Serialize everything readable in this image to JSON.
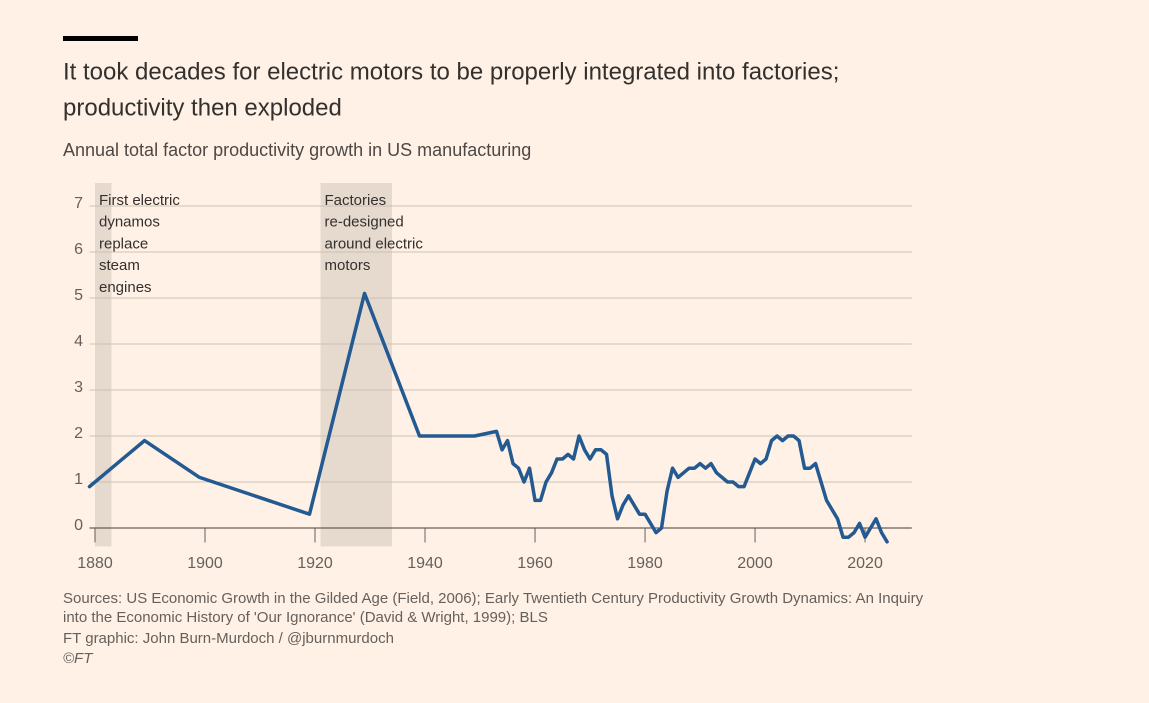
{
  "chart_data": {
    "type": "line",
    "title": [
      "It took decades for electric motors to be properly integrated into factories;",
      "productivity then exploded"
    ],
    "subtitle": "Annual total factor productivity growth in US manufacturing",
    "color": "#235a91",
    "x": [
      1879,
      1889,
      1899,
      1919,
      1929,
      1939,
      1949,
      1953,
      1954,
      1955,
      1956,
      1957,
      1958,
      1959,
      1960,
      1961,
      1962,
      1963,
      1964,
      1965,
      1966,
      1967,
      1968,
      1969,
      1970,
      1971,
      1972,
      1973,
      1974,
      1975,
      1976,
      1977,
      1978,
      1979,
      1980,
      1981,
      1982,
      1983,
      1984,
      1985,
      1986,
      1987,
      1988,
      1989,
      1990,
      1991,
      1992,
      1993,
      1994,
      1995,
      1996,
      1997,
      1998,
      1999,
      2000,
      2001,
      2002,
      2003,
      2004,
      2005,
      2006,
      2007,
      2008,
      2009,
      2010,
      2011,
      2012,
      2013,
      2014,
      2015,
      2016,
      2017,
      2018,
      2019,
      2020,
      2021,
      2022,
      2023,
      2024
    ],
    "values": [
      0.9,
      1.9,
      1.1,
      0.3,
      5.1,
      2.0,
      2.0,
      2.1,
      1.7,
      1.9,
      1.4,
      1.3,
      1.0,
      1.3,
      0.6,
      0.6,
      1.0,
      1.2,
      1.5,
      1.5,
      1.6,
      1.5,
      2.0,
      1.7,
      1.5,
      1.7,
      1.7,
      1.6,
      0.7,
      0.2,
      0.5,
      0.7,
      0.5,
      0.3,
      0.3,
      0.1,
      -0.1,
      0.0,
      0.8,
      1.3,
      1.1,
      1.2,
      1.3,
      1.3,
      1.4,
      1.3,
      1.4,
      1.2,
      1.1,
      1.0,
      1.0,
      0.9,
      0.9,
      1.2,
      1.5,
      1.4,
      1.5,
      1.9,
      2.0,
      1.9,
      2.0,
      2.0,
      1.9,
      1.3,
      1.3,
      1.4,
      1.0,
      0.6,
      0.4,
      0.2,
      -0.2,
      -0.2,
      -0.1,
      0.1,
      -0.2,
      0.0,
      0.2,
      -0.1,
      -0.3
    ],
    "xlim": [
      1879,
      2028.5
    ],
    "ylim": [
      -0.4,
      7.2
    ],
    "xticks": [
      1880,
      1900,
      1920,
      1940,
      1960,
      1980,
      2000,
      2020
    ],
    "yticks": [
      0,
      1,
      2,
      3,
      4,
      5,
      6,
      7
    ],
    "grid": true,
    "shaded_periods": [
      {
        "start": 1880,
        "end": 1883,
        "label": [
          "First electric",
          "dynamos",
          "replace",
          "steam",
          "engines"
        ]
      },
      {
        "start": 1921,
        "end": 1934,
        "label": [
          "Factories",
          "re-designed",
          "around electric",
          "motors"
        ]
      }
    ],
    "footer": [
      "Sources: US Economic Growth in the Gilded Age (Field, 2006); Early Twentieth Century Productivity Growth Dynamics: An Inquiry",
      "into the Economic History of 'Our Ignorance' (David & Wright, 1999); BLS",
      "FT graphic: John Burn-Murdoch / @jburnmurdoch",
      "©FT"
    ]
  }
}
